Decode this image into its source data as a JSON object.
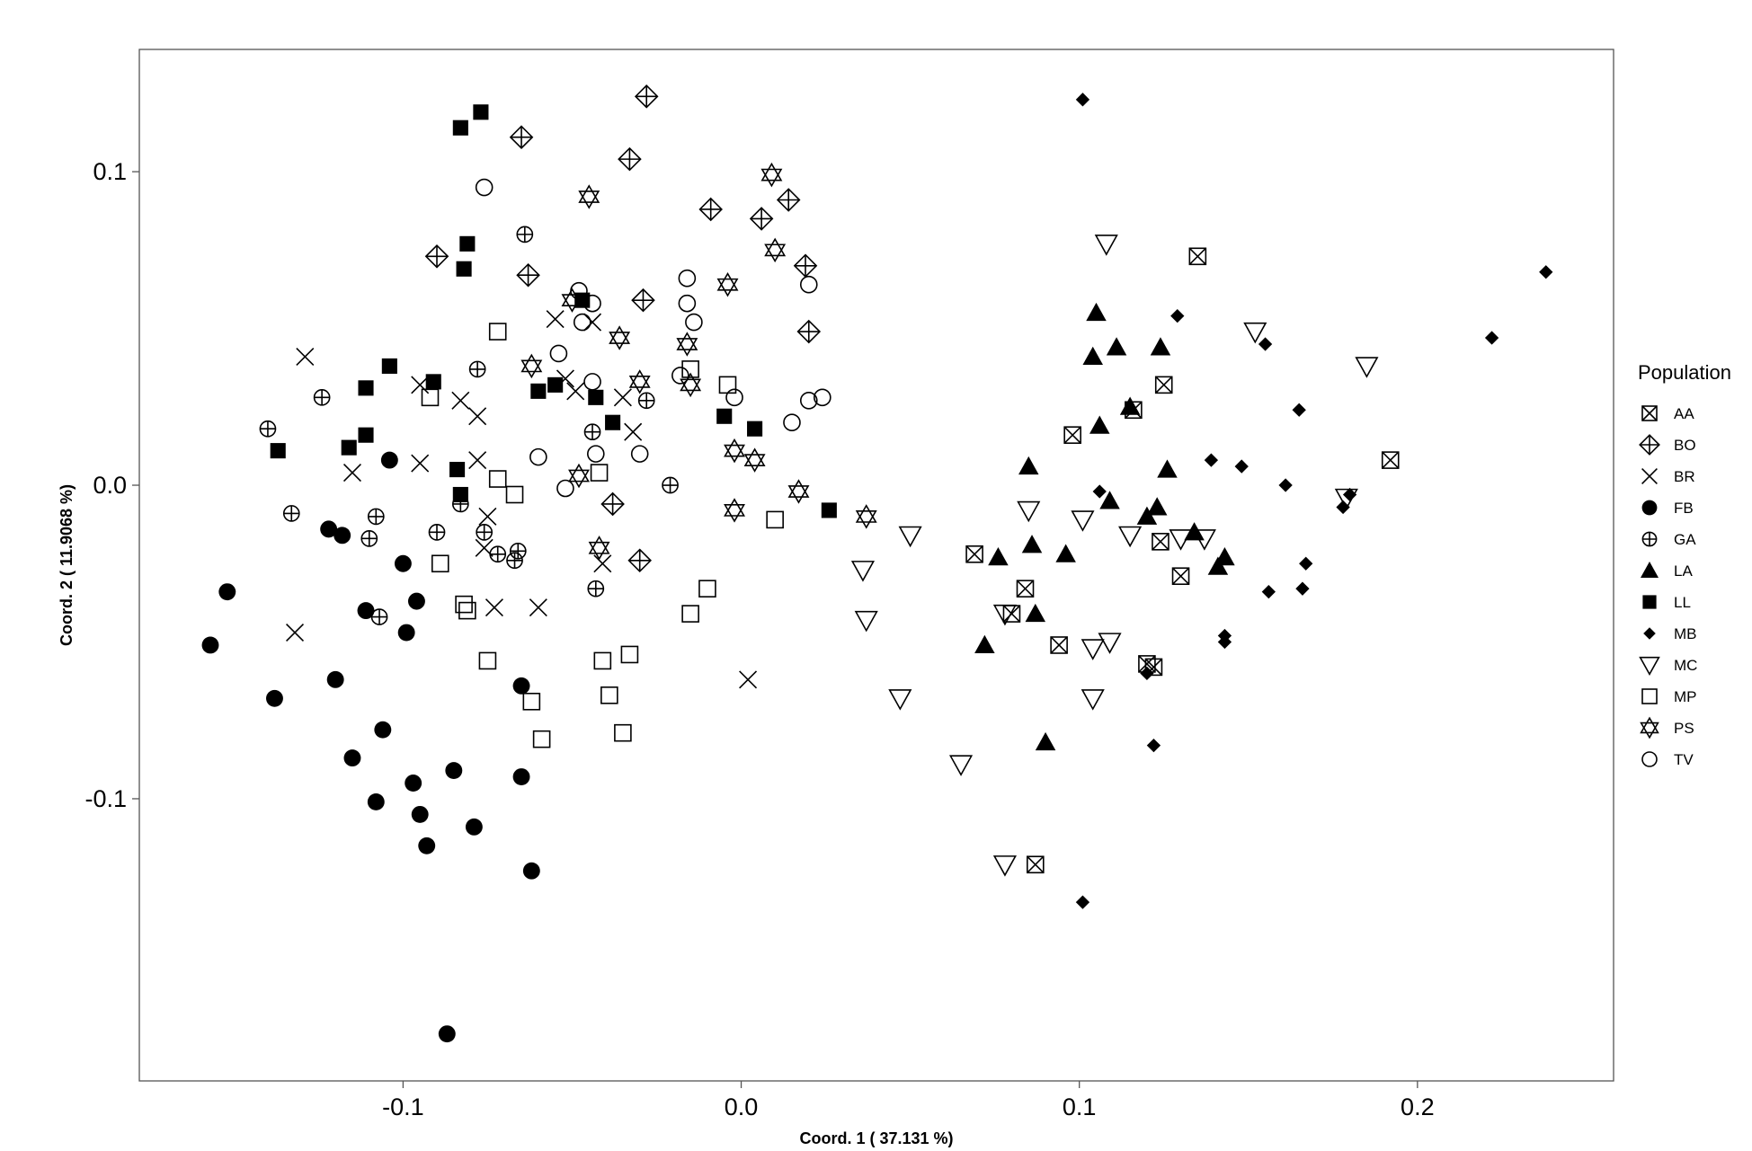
{
  "chart_data": {
    "type": "scatter",
    "xlabel": "Coord. 1 ( 37.131 %)",
    "ylabel": "Coord. 2 ( 11.9068 %)",
    "xlim": [
      -0.178,
      0.258
    ],
    "ylim": [
      -0.19,
      0.139
    ],
    "x_ticks": [
      -0.1,
      0.0,
      0.1,
      0.2
    ],
    "x_tick_labels": [
      "-0.1",
      "0.0",
      "0.1",
      "0.2"
    ],
    "y_ticks": [
      -0.1,
      0.0,
      0.1
    ],
    "y_tick_labels": [
      "-0.1",
      "0.0",
      "0.1"
    ],
    "grid": false,
    "legend": {
      "title": "Population",
      "position": "right"
    },
    "series": [
      {
        "name": "AA",
        "marker": "square-x",
        "points": [
          [
            0.135,
            0.073
          ],
          [
            0.125,
            0.032
          ],
          [
            0.116,
            0.024
          ],
          [
            0.098,
            0.016
          ],
          [
            0.192,
            0.008
          ],
          [
            0.069,
            -0.022
          ],
          [
            0.084,
            -0.033
          ],
          [
            0.08,
            -0.041
          ],
          [
            0.094,
            -0.051
          ],
          [
            0.124,
            -0.018
          ],
          [
            0.13,
            -0.029
          ],
          [
            0.12,
            -0.057
          ],
          [
            0.122,
            -0.058
          ],
          [
            0.087,
            -0.121
          ]
        ]
      },
      {
        "name": "BO",
        "marker": "diamond-plus",
        "points": [
          [
            -0.028,
            0.124
          ],
          [
            -0.065,
            0.111
          ],
          [
            -0.033,
            0.104
          ],
          [
            -0.009,
            0.088
          ],
          [
            0.006,
            0.085
          ],
          [
            0.014,
            0.091
          ],
          [
            -0.09,
            0.073
          ],
          [
            -0.063,
            0.067
          ],
          [
            -0.029,
            0.059
          ],
          [
            0.019,
            0.07
          ],
          [
            0.02,
            0.049
          ],
          [
            -0.038,
            -0.006
          ],
          [
            -0.03,
            -0.024
          ]
        ]
      },
      {
        "name": "BR",
        "marker": "x",
        "points": [
          [
            -0.129,
            0.041
          ],
          [
            -0.115,
            0.004
          ],
          [
            -0.095,
            0.032
          ],
          [
            -0.083,
            0.027
          ],
          [
            -0.078,
            0.022
          ],
          [
            -0.095,
            0.007
          ],
          [
            -0.078,
            0.008
          ],
          [
            -0.075,
            -0.01
          ],
          [
            -0.076,
            -0.02
          ],
          [
            -0.055,
            0.053
          ],
          [
            -0.044,
            0.052
          ],
          [
            -0.052,
            0.034
          ],
          [
            -0.049,
            0.03
          ],
          [
            -0.035,
            0.028
          ],
          [
            -0.032,
            0.017
          ],
          [
            -0.041,
            -0.025
          ],
          [
            -0.073,
            -0.039
          ],
          [
            -0.06,
            -0.039
          ],
          [
            -0.132,
            -0.047
          ],
          [
            0.002,
            -0.062
          ]
        ]
      },
      {
        "name": "FB",
        "marker": "circle-filled",
        "points": [
          [
            -0.104,
            0.008
          ],
          [
            -0.122,
            -0.014
          ],
          [
            -0.118,
            -0.016
          ],
          [
            -0.1,
            -0.025
          ],
          [
            -0.096,
            -0.037
          ],
          [
            -0.152,
            -0.034
          ],
          [
            -0.111,
            -0.04
          ],
          [
            -0.099,
            -0.047
          ],
          [
            -0.157,
            -0.051
          ],
          [
            -0.138,
            -0.068
          ],
          [
            -0.12,
            -0.062
          ],
          [
            -0.065,
            -0.064
          ],
          [
            -0.115,
            -0.087
          ],
          [
            -0.106,
            -0.078
          ],
          [
            -0.097,
            -0.095
          ],
          [
            -0.085,
            -0.091
          ],
          [
            -0.065,
            -0.093
          ],
          [
            -0.108,
            -0.101
          ],
          [
            -0.095,
            -0.105
          ],
          [
            -0.093,
            -0.115
          ],
          [
            -0.079,
            -0.109
          ],
          [
            -0.062,
            -0.123
          ],
          [
            -0.087,
            -0.175
          ]
        ]
      },
      {
        "name": "GA",
        "marker": "circle-plus",
        "points": [
          [
            -0.14,
            0.018
          ],
          [
            -0.124,
            0.028
          ],
          [
            -0.064,
            0.08
          ],
          [
            -0.078,
            0.037
          ],
          [
            -0.133,
            -0.009
          ],
          [
            -0.108,
            -0.01
          ],
          [
            -0.11,
            -0.017
          ],
          [
            -0.09,
            -0.015
          ],
          [
            -0.083,
            -0.006
          ],
          [
            -0.076,
            -0.015
          ],
          [
            -0.072,
            -0.022
          ],
          [
            -0.066,
            -0.021
          ],
          [
            -0.067,
            -0.024
          ],
          [
            -0.107,
            -0.042
          ],
          [
            -0.044,
            0.017
          ],
          [
            -0.028,
            0.027
          ],
          [
            -0.021,
            0.0
          ],
          [
            -0.043,
            -0.033
          ]
        ]
      },
      {
        "name": "LA",
        "marker": "triangle-up-filled",
        "points": [
          [
            0.105,
            0.055
          ],
          [
            0.111,
            0.044
          ],
          [
            0.104,
            0.041
          ],
          [
            0.124,
            0.044
          ],
          [
            0.106,
            0.019
          ],
          [
            0.115,
            0.025
          ],
          [
            0.085,
            0.006
          ],
          [
            0.126,
            0.005
          ],
          [
            0.109,
            -0.005
          ],
          [
            0.123,
            -0.007
          ],
          [
            0.12,
            -0.01
          ],
          [
            0.134,
            -0.015
          ],
          [
            0.143,
            -0.023
          ],
          [
            0.141,
            -0.026
          ],
          [
            0.076,
            -0.023
          ],
          [
            0.086,
            -0.019
          ],
          [
            0.096,
            -0.022
          ],
          [
            0.087,
            -0.041
          ],
          [
            0.072,
            -0.051
          ],
          [
            0.09,
            -0.082
          ]
        ]
      },
      {
        "name": "LL",
        "marker": "square-filled",
        "points": [
          [
            -0.083,
            0.114
          ],
          [
            -0.077,
            0.119
          ],
          [
            -0.081,
            0.077
          ],
          [
            -0.082,
            0.069
          ],
          [
            -0.104,
            0.038
          ],
          [
            -0.111,
            0.031
          ],
          [
            -0.091,
            0.033
          ],
          [
            -0.111,
            0.016
          ],
          [
            -0.116,
            0.012
          ],
          [
            -0.137,
            0.011
          ],
          [
            -0.084,
            0.005
          ],
          [
            -0.083,
            -0.003
          ],
          [
            -0.047,
            0.059
          ],
          [
            -0.06,
            0.03
          ],
          [
            -0.055,
            0.032
          ],
          [
            -0.043,
            0.028
          ],
          [
            -0.038,
            0.02
          ],
          [
            -0.005,
            0.022
          ],
          [
            0.004,
            0.018
          ],
          [
            0.026,
            -0.008
          ]
        ]
      },
      {
        "name": "MB",
        "marker": "diamond-filled",
        "points": [
          [
            0.101,
            0.123
          ],
          [
            0.238,
            0.068
          ],
          [
            0.129,
            0.054
          ],
          [
            0.222,
            0.047
          ],
          [
            0.155,
            0.045
          ],
          [
            0.165,
            0.024
          ],
          [
            0.139,
            0.008
          ],
          [
            0.148,
            0.006
          ],
          [
            0.161,
            0.0
          ],
          [
            0.106,
            -0.002
          ],
          [
            0.18,
            -0.003
          ],
          [
            0.178,
            -0.007
          ],
          [
            0.167,
            -0.025
          ],
          [
            0.156,
            -0.034
          ],
          [
            0.166,
            -0.033
          ],
          [
            0.143,
            -0.048
          ],
          [
            0.143,
            -0.05
          ],
          [
            0.12,
            -0.06
          ],
          [
            0.122,
            -0.083
          ],
          [
            0.101,
            -0.133
          ]
        ]
      },
      {
        "name": "MC",
        "marker": "triangle-down",
        "points": [
          [
            0.108,
            0.077
          ],
          [
            0.152,
            0.049
          ],
          [
            0.185,
            0.038
          ],
          [
            0.085,
            -0.008
          ],
          [
            0.101,
            -0.011
          ],
          [
            0.115,
            -0.016
          ],
          [
            0.13,
            -0.017
          ],
          [
            0.137,
            -0.017
          ],
          [
            0.179,
            -0.004
          ],
          [
            0.05,
            -0.016
          ],
          [
            0.036,
            -0.027
          ],
          [
            0.037,
            -0.043
          ],
          [
            0.078,
            -0.041
          ],
          [
            0.104,
            -0.052
          ],
          [
            0.109,
            -0.05
          ],
          [
            0.047,
            -0.068
          ],
          [
            0.104,
            -0.068
          ],
          [
            0.065,
            -0.089
          ],
          [
            0.078,
            -0.121
          ]
        ]
      },
      {
        "name": "MP",
        "marker": "square",
        "points": [
          [
            -0.072,
            0.049
          ],
          [
            -0.092,
            0.028
          ],
          [
            -0.015,
            0.037
          ],
          [
            -0.004,
            0.032
          ],
          [
            -0.072,
            0.002
          ],
          [
            -0.067,
            -0.003
          ],
          [
            -0.042,
            0.004
          ],
          [
            -0.089,
            -0.025
          ],
          [
            -0.082,
            -0.038
          ],
          [
            -0.081,
            -0.04
          ],
          [
            -0.075,
            -0.056
          ],
          [
            -0.01,
            -0.033
          ],
          [
            -0.015,
            -0.041
          ],
          [
            0.01,
            -0.011
          ],
          [
            -0.041,
            -0.056
          ],
          [
            -0.033,
            -0.054
          ],
          [
            -0.039,
            -0.067
          ],
          [
            -0.062,
            -0.069
          ],
          [
            -0.059,
            -0.081
          ],
          [
            -0.035,
            -0.079
          ]
        ]
      },
      {
        "name": "PS",
        "marker": "star-of-david",
        "points": [
          [
            0.009,
            0.099
          ],
          [
            -0.045,
            0.092
          ],
          [
            0.01,
            0.075
          ],
          [
            -0.004,
            0.064
          ],
          [
            -0.05,
            0.059
          ],
          [
            -0.036,
            0.047
          ],
          [
            -0.016,
            0.045
          ],
          [
            -0.062,
            0.038
          ],
          [
            -0.03,
            0.033
          ],
          [
            -0.015,
            0.032
          ],
          [
            -0.048,
            0.003
          ],
          [
            -0.002,
            0.011
          ],
          [
            0.004,
            0.008
          ],
          [
            0.017,
            -0.002
          ],
          [
            -0.002,
            -0.008
          ],
          [
            0.037,
            -0.01
          ],
          [
            -0.042,
            -0.02
          ]
        ]
      },
      {
        "name": "TV",
        "marker": "circle",
        "points": [
          [
            -0.076,
            0.095
          ],
          [
            -0.016,
            0.066
          ],
          [
            -0.048,
            0.062
          ],
          [
            -0.044,
            0.058
          ],
          [
            -0.016,
            0.058
          ],
          [
            -0.014,
            0.052
          ],
          [
            -0.047,
            0.052
          ],
          [
            -0.054,
            0.042
          ],
          [
            -0.018,
            0.035
          ],
          [
            -0.044,
            0.033
          ],
          [
            -0.002,
            0.028
          ],
          [
            0.02,
            0.027
          ],
          [
            0.024,
            0.028
          ],
          [
            0.015,
            0.02
          ],
          [
            -0.06,
            0.009
          ],
          [
            -0.043,
            0.01
          ],
          [
            -0.03,
            0.01
          ],
          [
            -0.052,
            -0.001
          ],
          [
            0.02,
            0.064
          ]
        ]
      }
    ]
  }
}
